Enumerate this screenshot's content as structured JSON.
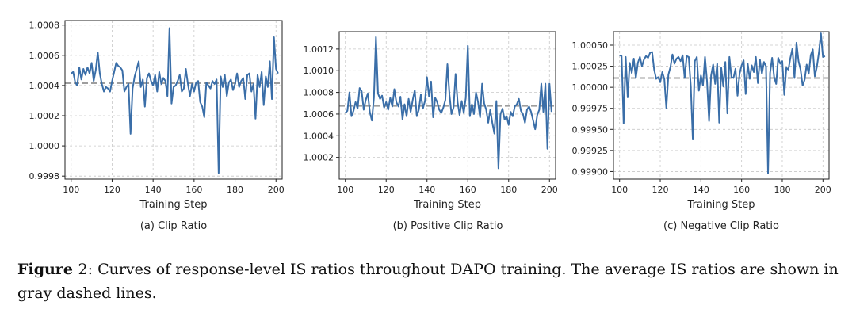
{
  "chart_data": [
    {
      "type": "line",
      "subcaption": "(a) Clip Ratio",
      "xlabel": "Training Step",
      "ylabel": "",
      "xlim": [
        97,
        203
      ],
      "ylim": [
        0.99978,
        1.00083
      ],
      "xticks": [
        100,
        120,
        140,
        160,
        180,
        200
      ],
      "xtick_labels": [
        "100",
        "120",
        "140",
        "160",
        "180",
        "200"
      ],
      "yticks": [
        0.9998,
        1.0,
        1.0002,
        1.0004,
        1.0006,
        1.0008
      ],
      "ytick_labels": [
        "0.9998",
        "1.0000",
        "1.0002",
        "1.0004",
        "1.0006",
        "1.0008"
      ],
      "mean": 1.000415,
      "grid": true,
      "color": "#3a6ea8",
      "mean_color": "#9e9e9e",
      "x_start": 100,
      "values": [
        1.00048,
        1.00049,
        1.00042,
        1.0004,
        1.00052,
        1.00044,
        1.00051,
        1.00047,
        1.00052,
        1.00048,
        1.00055,
        1.00043,
        1.0005,
        1.00062,
        1.00048,
        1.00041,
        1.00036,
        1.00039,
        1.00038,
        1.00036,
        1.00043,
        1.00049,
        1.00055,
        1.00053,
        1.00052,
        1.0005,
        1.00036,
        1.00039,
        1.00041,
        1.00008,
        1.00038,
        1.00046,
        1.00051,
        1.00056,
        1.00039,
        1.00044,
        1.00026,
        1.00045,
        1.00048,
        1.00043,
        1.0004,
        1.00047,
        1.00036,
        1.00049,
        1.00041,
        1.00045,
        1.00043,
        1.00033,
        1.00078,
        1.00028,
        1.00039,
        1.0004,
        1.00043,
        1.00047,
        1.00036,
        1.00038,
        1.00051,
        1.00041,
        1.00033,
        1.00041,
        1.00036,
        1.00042,
        1.00043,
        1.00029,
        1.00026,
        1.00019,
        1.00042,
        1.0004,
        1.00038,
        1.00043,
        1.00041,
        1.00044,
        0.99982,
        1.00046,
        1.00039,
        1.00047,
        1.00033,
        1.00042,
        1.00044,
        1.00037,
        1.00041,
        1.00048,
        1.00039,
        1.00043,
        1.00045,
        1.00031,
        1.00047,
        1.00048,
        1.00036,
        1.00041,
        1.00018,
        1.00047,
        1.00039,
        1.00049,
        1.00027,
        1.00046,
        1.00039,
        1.00056,
        1.00031,
        1.00072,
        1.00051,
        1.00048
      ]
    },
    {
      "type": "line",
      "subcaption": "(b) Positive Clip Ratio",
      "xlabel": "Training Step",
      "ylabel": "",
      "xlim": [
        97,
        203
      ],
      "ylim": [
        1.0,
        1.00136
      ],
      "xticks": [
        100,
        120,
        140,
        160,
        180,
        200
      ],
      "xtick_labels": [
        "100",
        "120",
        "140",
        "160",
        "180",
        "200"
      ],
      "yticks": [
        1.0002,
        1.0004,
        1.0006,
        1.0008,
        1.001,
        1.0012
      ],
      "ytick_labels": [
        "1.0002",
        "1.0004",
        "1.0006",
        "1.0008",
        "1.0010",
        "1.0012"
      ],
      "mean": 1.000675,
      "grid": true,
      "color": "#3a6ea8",
      "mean_color": "#9e9e9e",
      "x_start": 100,
      "values": [
        1.00061,
        1.00063,
        1.0008,
        1.00058,
        1.00063,
        1.00071,
        1.00065,
        1.00084,
        1.00081,
        1.00064,
        1.00073,
        1.00079,
        1.00062,
        1.00054,
        1.00075,
        1.00131,
        1.00079,
        1.00074,
        1.00077,
        1.00066,
        1.00071,
        1.00064,
        1.00075,
        1.00067,
        1.00083,
        1.00071,
        1.00067,
        1.00076,
        1.00055,
        1.00069,
        1.00058,
        1.00074,
        1.00062,
        1.00073,
        1.00082,
        1.00058,
        1.00064,
        1.00078,
        1.00065,
        1.00072,
        1.00094,
        1.00076,
        1.0009,
        1.00057,
        1.00075,
        1.00071,
        1.00064,
        1.00061,
        1.00066,
        1.00073,
        1.00106,
        1.00078,
        1.0006,
        1.00066,
        1.00097,
        1.00071,
        1.00059,
        1.00072,
        1.00061,
        1.00075,
        1.00123,
        1.00058,
        1.00069,
        1.0006,
        1.0008,
        1.00071,
        1.00057,
        1.00088,
        1.0007,
        1.00064,
        1.00052,
        1.00064,
        1.00052,
        1.00042,
        1.00072,
        1.0001,
        1.0006,
        1.00065,
        1.00055,
        1.00058,
        1.0005,
        1.00062,
        1.00058,
        1.00067,
        1.00069,
        1.00074,
        1.00063,
        1.0006,
        1.00052,
        1.00064,
        1.00067,
        1.00062,
        1.00054,
        1.00046,
        1.00059,
        1.00064,
        1.00088,
        1.00062,
        1.00088,
        1.00028,
        1.00088,
        1.00062
      ]
    },
    {
      "type": "line",
      "subcaption": "(c) Negative Clip Ratio",
      "xlabel": "Training Step",
      "ylabel": "",
      "xlim": [
        97,
        203
      ],
      "ylim": [
        0.99891,
        1.00066
      ],
      "xticks": [
        100,
        120,
        140,
        160,
        180,
        200
      ],
      "xtick_labels": [
        "100",
        "120",
        "140",
        "160",
        "180",
        "200"
      ],
      "yticks": [
        0.999,
        0.99925,
        0.9995,
        0.99975,
        1.0,
        1.00025,
        1.0005
      ],
      "ytick_labels": [
        "0.99900",
        "0.99925",
        "0.99950",
        "0.99975",
        "1.00000",
        "1.00025",
        "1.00050"
      ],
      "mean": 1.00011,
      "grid": true,
      "color": "#3a6ea8",
      "mean_color": "#9e9e9e",
      "x_start": 100,
      "values": [
        1.00038,
        1.00037,
        0.99957,
        1.00036,
        0.99988,
        1.00029,
        1.00017,
        1.00034,
        1.00011,
        1.00029,
        1.00036,
        1.00025,
        1.00033,
        1.00037,
        1.00035,
        1.00041,
        1.00042,
        1.00021,
        1.0001,
        1.00012,
        1.00006,
        1.00018,
        1.0001,
        0.99975,
        1.00015,
        1.00024,
        1.00039,
        1.00028,
        1.00034,
        1.00036,
        1.00031,
        1.00038,
        1.00011,
        1.00037,
        1.00036,
        1.00002,
        0.99938,
        1.00031,
        1.00036,
        0.99996,
        1.00014,
        1.00002,
        1.00036,
        1.00007,
        0.9996,
        1.00014,
        1.00027,
        1.00004,
        1.00028,
        0.99958,
        1.00023,
        1.00001,
        1.0003,
        0.99969,
        1.00036,
        1.00012,
        1.00011,
        1.00022,
        0.9999,
        1.00016,
        1.00026,
        1.00032,
        0.99992,
        1.00028,
        1.0001,
        1.00026,
        1.00018,
        1.00036,
        1.00005,
        1.00033,
        1.00016,
        1.0003,
        1.00025,
        0.99898,
        1.00017,
        1.00035,
        1.00012,
        1.00004,
        1.00035,
        1.00028,
        1.00031,
        0.99991,
        1.00023,
        1.00021,
        1.00035,
        1.00046,
        1.00011,
        1.00053,
        1.00031,
        1.00021,
        1.00002,
        1.00009,
        1.00027,
        1.00016,
        1.00038,
        1.00045,
        1.00013,
        1.00024,
        1.00041,
        1.00064,
        1.00036,
        1.00037
      ]
    }
  ],
  "figure_caption": {
    "label": "Figure",
    "number": "2",
    "text": ": Curves of response-level IS ratios throughout DAPO training. The average IS ratios are shown in gray dashed lines."
  }
}
